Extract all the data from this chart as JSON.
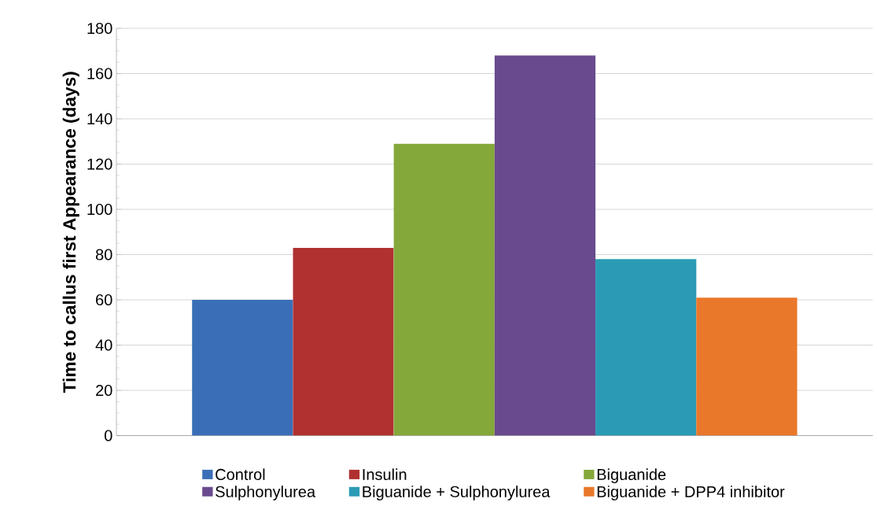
{
  "chart_data": {
    "type": "bar",
    "ylabel": "Time to callus first Appearance (days)",
    "categories": [
      null
    ],
    "series": [
      {
        "name": "Control",
        "color": "#3a6fb8",
        "values": [
          60
        ]
      },
      {
        "name": "Insulin",
        "color": "#b0312f",
        "values": [
          83
        ]
      },
      {
        "name": "Biguanide",
        "color": "#85a83a",
        "values": [
          129
        ]
      },
      {
        "name": "Sulphonylurea",
        "color": "#6a4a8e",
        "values": [
          168
        ]
      },
      {
        "name": "Biguanide + Sulphonylurea",
        "color": "#2b9bb5",
        "values": [
          78
        ]
      },
      {
        "name": "Biguanide + DPP4 inhibitor",
        "color": "#e9782a",
        "values": [
          61
        ]
      }
    ],
    "ylim": [
      0,
      180
    ],
    "yticks": [
      0,
      20,
      40,
      60,
      80,
      100,
      120,
      140,
      160,
      180
    ],
    "grid": "y",
    "legend": "bottom"
  }
}
